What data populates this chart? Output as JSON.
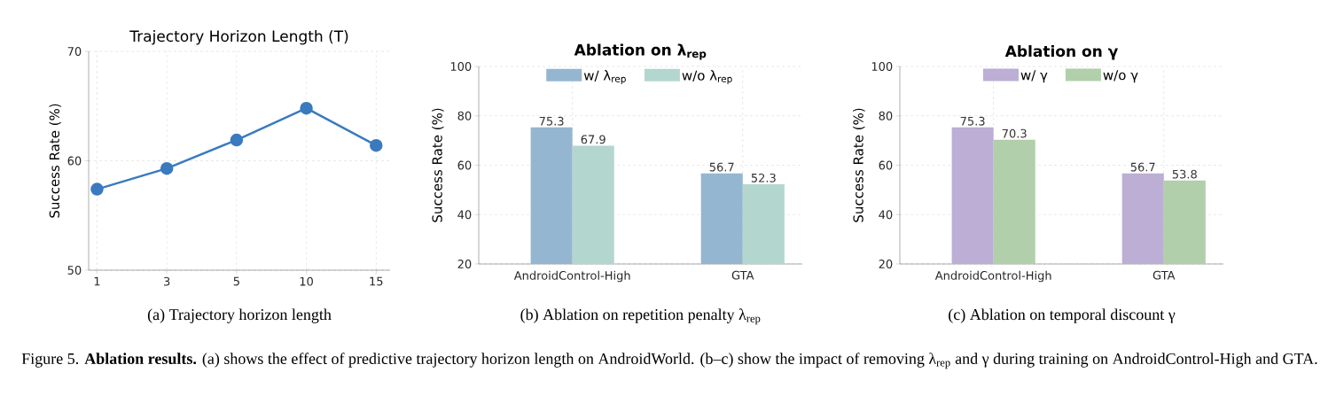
{
  "chart_data": [
    {
      "type": "line",
      "title": "Trajectory Horizon Length (T)",
      "ylabel": "Success Rate (%)",
      "categories": [
        "1",
        "3",
        "5",
        "10",
        "15"
      ],
      "values": [
        57.4,
        59.3,
        61.9,
        64.8,
        61.4
      ],
      "color": "#3a7abf",
      "ylim": [
        50,
        70
      ],
      "yticks": [
        50,
        60,
        70
      ],
      "grid": true,
      "marker": "circle",
      "annotations": [
        "(a) Trajectory horizon length"
      ]
    },
    {
      "type": "bar",
      "title": "Ablation on λ$_{rep}$",
      "ylabel": "Success Rate (%)",
      "categories": [
        "AndroidControl-High",
        "GTA"
      ],
      "series": [
        {
          "name": "w/ λ$_{rep}$",
          "color": "#95b6d1",
          "values": [
            75.3,
            56.7
          ]
        },
        {
          "name": "w/o λ$_{rep}$",
          "color": "#b3d6cf",
          "values": [
            67.9,
            52.3
          ]
        }
      ],
      "ylim": [
        20,
        100
      ],
      "yticks": [
        20,
        40,
        60,
        80,
        100
      ],
      "grid": true,
      "legend": "top",
      "data_labels": true,
      "annotations": [
        "(b) Ablation on repetition penalty λ$_{rep}$"
      ]
    },
    {
      "type": "bar",
      "title": "Ablation on γ",
      "ylabel": "Success Rate (%)",
      "categories": [
        "AndroidControl-High",
        "GTA"
      ],
      "series": [
        {
          "name": "w/ γ",
          "color": "#bcaed4",
          "values": [
            75.3,
            56.7
          ]
        },
        {
          "name": "w/o γ",
          "color": "#b0cfaa",
          "values": [
            70.3,
            53.8
          ]
        }
      ],
      "ylim": [
        20,
        100
      ],
      "yticks": [
        20,
        40,
        60,
        80,
        100
      ],
      "grid": true,
      "legend": "top",
      "data_labels": true,
      "annotations": [
        "(c) Ablation on temporal discount γ",
        "Figure 5. **Ablation results.** (a) shows the effect of predictive trajectory horizon length on AndroidWorld. (b–c) show the impact of removing λ$_{rep}$ and γ during training on AndroidControl-High and GTA."
      ]
    }
  ]
}
